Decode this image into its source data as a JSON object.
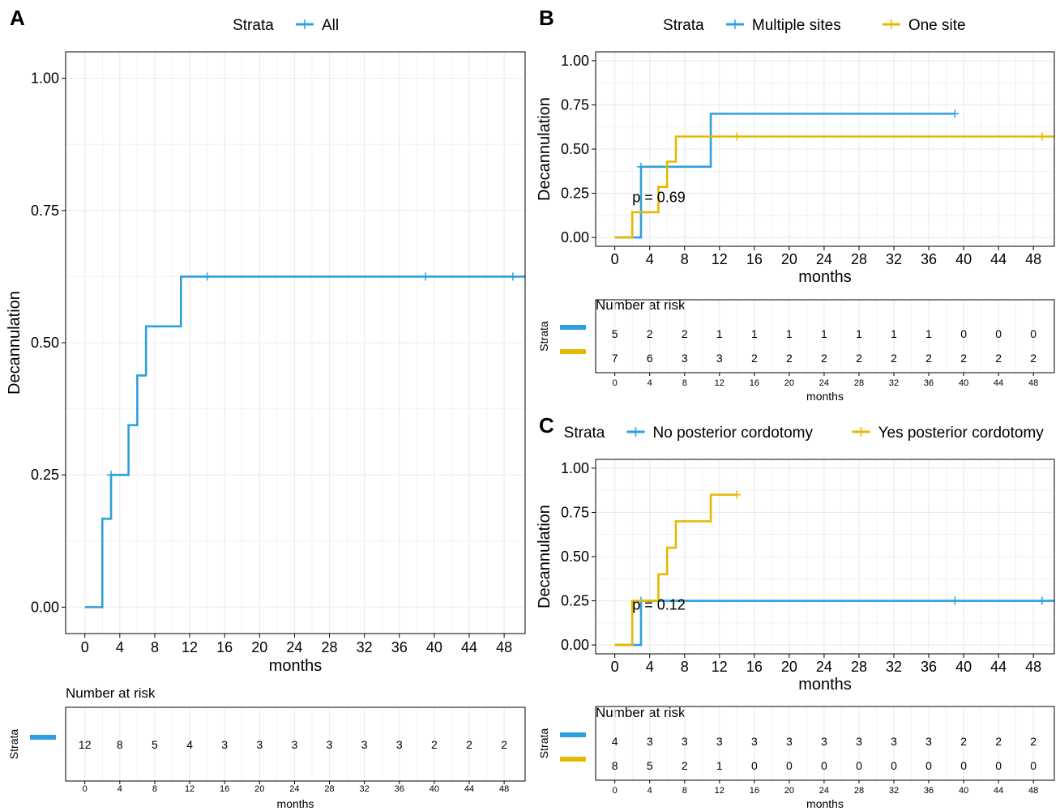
{
  "colors": {
    "blue": "#2E9FDF",
    "yellow": "#E7B800",
    "grid": "#EBEBEB",
    "axis": "#000000"
  },
  "risk_title": "Number at risk",
  "chart_data": [
    {
      "id": "A",
      "panel_label": "A",
      "type": "line",
      "xlabel": "months",
      "ylabel": "Decannulation",
      "legend_title": "Strata",
      "legend_position": "top",
      "x_ticks": [
        0,
        4,
        8,
        12,
        16,
        20,
        24,
        28,
        32,
        36,
        40,
        44,
        48
      ],
      "y_ticks": [
        0,
        0.25,
        0.5,
        0.75,
        1
      ],
      "y_tick_labels": [
        "0.00",
        "0.25",
        "0.50",
        "0.75",
        "1.00"
      ],
      "xlim": [
        -2.2,
        50.4
      ],
      "ylim": [
        -0.05,
        1.05
      ],
      "grid": true,
      "pvalue": "",
      "series": [
        {
          "name": "All",
          "color": "#2E9FDF",
          "x": [
            0,
            2,
            3,
            5,
            6,
            7,
            11,
            50.4
          ],
          "y": [
            0,
            0.167,
            0.25,
            0.344,
            0.438,
            0.531,
            0.625,
            0.625
          ],
          "censor_x": [
            3,
            14,
            39,
            49
          ],
          "censor_y": [
            0.25,
            0.625,
            0.625,
            0.625
          ]
        }
      ],
      "risk_table": {
        "title": "Number at risk",
        "ylabel": "Strata",
        "xlabel": "months",
        "times": [
          0,
          4,
          8,
          12,
          16,
          20,
          24,
          28,
          32,
          36,
          40,
          44,
          48
        ],
        "rows": [
          {
            "color": "#2E9FDF",
            "values": [
              12,
              8,
              5,
              4,
              3,
              3,
              3,
              3,
              3,
              3,
              2,
              2,
              2
            ]
          }
        ]
      }
    },
    {
      "id": "B",
      "panel_label": "B",
      "type": "line",
      "xlabel": "months",
      "ylabel": "Decannulation",
      "legend_title": "Strata",
      "legend_position": "top",
      "x_ticks": [
        0,
        4,
        8,
        12,
        16,
        20,
        24,
        28,
        32,
        36,
        40,
        44,
        48
      ],
      "y_ticks": [
        0,
        0.25,
        0.5,
        0.75,
        1
      ],
      "y_tick_labels": [
        "0.00",
        "0.25",
        "0.50",
        "0.75",
        "1.00"
      ],
      "xlim": [
        -2.2,
        50.4
      ],
      "ylim": [
        -0.05,
        1.05
      ],
      "grid": true,
      "pvalue": "p = 0.69",
      "pvalue_pos": [
        2,
        0.2
      ],
      "series": [
        {
          "name": "Multiple sites",
          "color": "#2E9FDF",
          "x": [
            0,
            3,
            11,
            39
          ],
          "y": [
            0,
            0.4,
            0.7,
            0.7
          ],
          "censor_x": [
            3,
            39
          ],
          "censor_y": [
            0.4,
            0.7
          ]
        },
        {
          "name": "One site",
          "color": "#E7B800",
          "x": [
            0,
            2,
            5,
            6,
            7,
            50.4
          ],
          "y": [
            0,
            0.143,
            0.286,
            0.429,
            0.571,
            0.571
          ],
          "censor_x": [
            14,
            49
          ],
          "censor_y": [
            0.571,
            0.571
          ]
        }
      ],
      "risk_table": {
        "title": "Number at risk",
        "ylabel": "Strata",
        "xlabel": "months",
        "times": [
          0,
          4,
          8,
          12,
          16,
          20,
          24,
          28,
          32,
          36,
          40,
          44,
          48
        ],
        "rows": [
          {
            "color": "#2E9FDF",
            "values": [
              5,
              2,
              2,
              1,
              1,
              1,
              1,
              1,
              1,
              1,
              0,
              0,
              0
            ]
          },
          {
            "color": "#E7B800",
            "values": [
              7,
              6,
              3,
              3,
              2,
              2,
              2,
              2,
              2,
              2,
              2,
              2,
              2
            ]
          }
        ]
      }
    },
    {
      "id": "C",
      "panel_label": "C",
      "type": "line",
      "xlabel": "months",
      "ylabel": "Decannulation",
      "legend_title": "Strata",
      "legend_position": "top",
      "x_ticks": [
        0,
        4,
        8,
        12,
        16,
        20,
        24,
        28,
        32,
        36,
        40,
        44,
        48
      ],
      "y_ticks": [
        0,
        0.25,
        0.5,
        0.75,
        1
      ],
      "y_tick_labels": [
        "0.00",
        "0.25",
        "0.50",
        "0.75",
        "1.00"
      ],
      "xlim": [
        -2.2,
        50.4
      ],
      "ylim": [
        -0.05,
        1.05
      ],
      "grid": true,
      "pvalue": "p = 0.12",
      "pvalue_pos": [
        2,
        0.2
      ],
      "series": [
        {
          "name": "No posterior cordotomy",
          "color": "#2E9FDF",
          "x": [
            0,
            3,
            50.4
          ],
          "y": [
            0,
            0.25,
            0.25
          ],
          "censor_x": [
            3,
            39,
            49
          ],
          "censor_y": [
            0.25,
            0.25,
            0.25
          ]
        },
        {
          "name": "Yes posterior cordotomy",
          "color": "#E7B800",
          "x": [
            0,
            2,
            5,
            6,
            7,
            11,
            14
          ],
          "y": [
            0,
            0.25,
            0.4,
            0.55,
            0.7,
            0.85,
            0.85
          ],
          "censor_x": [
            14
          ],
          "censor_y": [
            0.85
          ]
        }
      ],
      "risk_table": {
        "title": "Number at risk",
        "ylabel": "Strata",
        "xlabel": "months",
        "times": [
          0,
          4,
          8,
          12,
          16,
          20,
          24,
          28,
          32,
          36,
          40,
          44,
          48
        ],
        "rows": [
          {
            "color": "#2E9FDF",
            "values": [
              4,
              3,
              3,
              3,
              3,
              3,
              3,
              3,
              3,
              3,
              2,
              2,
              2
            ]
          },
          {
            "color": "#E7B800",
            "values": [
              8,
              5,
              2,
              1,
              0,
              0,
              0,
              0,
              0,
              0,
              0,
              0,
              0
            ]
          }
        ]
      }
    }
  ]
}
